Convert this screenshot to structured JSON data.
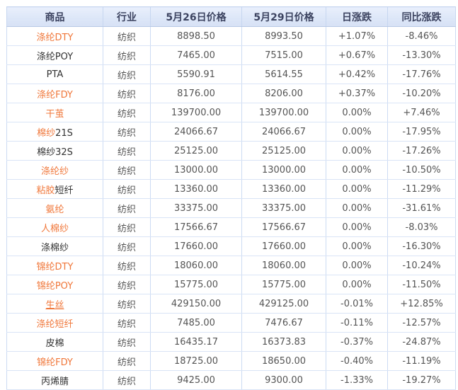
{
  "colors": {
    "up_red": "#e00000",
    "down_green": "#008000",
    "flat_gray": "#555555",
    "product_link_orange": "#f0773a",
    "header_bg": "#dde7f8",
    "border_blue": "#c6d6f0"
  },
  "table": {
    "columns": [
      {
        "key": "product",
        "label": "商品"
      },
      {
        "key": "industry",
        "label": "行业"
      },
      {
        "key": "price_0526",
        "label": "5月26日价格"
      },
      {
        "key": "price_0529",
        "label": "5月29日价格"
      },
      {
        "key": "daily",
        "label": "日涨跌"
      },
      {
        "key": "yoy",
        "label": "同比涨跌"
      }
    ],
    "rows": [
      {
        "product": [
          {
            "text": "涤纶DTY",
            "link": true
          }
        ],
        "industry": "纺织",
        "price_0526": "8898.50",
        "price_0529": "8993.50",
        "daily": {
          "text": "+1.07%",
          "trend": "up"
        },
        "yoy": {
          "text": "-8.46%",
          "trend": "down"
        }
      },
      {
        "product": [
          {
            "text": "涤纶POY",
            "link": false
          }
        ],
        "industry": "纺织",
        "price_0526": "7465.00",
        "price_0529": "7515.00",
        "daily": {
          "text": "+0.67%",
          "trend": "up"
        },
        "yoy": {
          "text": "-13.30%",
          "trend": "down"
        }
      },
      {
        "product": [
          {
            "text": "PTA",
            "link": false
          }
        ],
        "industry": "纺织",
        "price_0526": "5590.91",
        "price_0529": "5614.55",
        "daily": {
          "text": "+0.42%",
          "trend": "up"
        },
        "yoy": {
          "text": "-17.76%",
          "trend": "down"
        }
      },
      {
        "product": [
          {
            "text": "涤纶FDY",
            "link": true
          }
        ],
        "industry": "纺织",
        "price_0526": "8176.00",
        "price_0529": "8206.00",
        "daily": {
          "text": "+0.37%",
          "trend": "up"
        },
        "yoy": {
          "text": "-10.20%",
          "trend": "down"
        }
      },
      {
        "product": [
          {
            "text": "干茧",
            "link": true
          }
        ],
        "industry": "纺织",
        "price_0526": "139700.00",
        "price_0529": "139700.00",
        "daily": {
          "text": "0.00%",
          "trend": "flat"
        },
        "yoy": {
          "text": "+7.46%",
          "trend": "up"
        }
      },
      {
        "product": [
          {
            "text": "棉纱",
            "link": true
          },
          {
            "text": "21S",
            "link": false
          }
        ],
        "industry": "纺织",
        "price_0526": "24066.67",
        "price_0529": "24066.67",
        "daily": {
          "text": "0.00%",
          "trend": "flat"
        },
        "yoy": {
          "text": "-17.95%",
          "trend": "down"
        }
      },
      {
        "product": [
          {
            "text": "棉纱32S",
            "link": false
          }
        ],
        "industry": "纺织",
        "price_0526": "25125.00",
        "price_0529": "25125.00",
        "daily": {
          "text": "0.00%",
          "trend": "flat"
        },
        "yoy": {
          "text": "-17.26%",
          "trend": "down"
        }
      },
      {
        "product": [
          {
            "text": "涤纶纱",
            "link": true
          }
        ],
        "industry": "纺织",
        "price_0526": "13000.00",
        "price_0529": "13000.00",
        "daily": {
          "text": "0.00%",
          "trend": "flat"
        },
        "yoy": {
          "text": "-10.50%",
          "trend": "down"
        }
      },
      {
        "product": [
          {
            "text": "粘胶",
            "link": true
          },
          {
            "text": "短纤",
            "link": false
          }
        ],
        "industry": "纺织",
        "price_0526": "13360.00",
        "price_0529": "13360.00",
        "daily": {
          "text": "0.00%",
          "trend": "flat"
        },
        "yoy": {
          "text": "-11.29%",
          "trend": "down"
        }
      },
      {
        "product": [
          {
            "text": "氨纶",
            "link": true
          }
        ],
        "industry": "纺织",
        "price_0526": "33375.00",
        "price_0529": "33375.00",
        "daily": {
          "text": "0.00%",
          "trend": "flat"
        },
        "yoy": {
          "text": "-31.61%",
          "trend": "down"
        }
      },
      {
        "product": [
          {
            "text": "人棉纱",
            "link": true
          }
        ],
        "industry": "纺织",
        "price_0526": "17566.67",
        "price_0529": "17566.67",
        "daily": {
          "text": "0.00%",
          "trend": "flat"
        },
        "yoy": {
          "text": "-8.03%",
          "trend": "down"
        }
      },
      {
        "product": [
          {
            "text": "涤棉纱",
            "link": false
          }
        ],
        "industry": "纺织",
        "price_0526": "17660.00",
        "price_0529": "17660.00",
        "daily": {
          "text": "0.00%",
          "trend": "flat"
        },
        "yoy": {
          "text": "-16.30%",
          "trend": "down"
        }
      },
      {
        "product": [
          {
            "text": "锦纶DTY",
            "link": true
          }
        ],
        "industry": "纺织",
        "price_0526": "18060.00",
        "price_0529": "18060.00",
        "daily": {
          "text": "0.00%",
          "trend": "flat"
        },
        "yoy": {
          "text": "-10.24%",
          "trend": "down"
        }
      },
      {
        "product": [
          {
            "text": "锦纶POY",
            "link": true
          }
        ],
        "industry": "纺织",
        "price_0526": "15775.00",
        "price_0529": "15775.00",
        "daily": {
          "text": "0.00%",
          "trend": "flat"
        },
        "yoy": {
          "text": "-11.50%",
          "trend": "down"
        }
      },
      {
        "product": [
          {
            "text": "生丝",
            "link": true,
            "underline": true
          }
        ],
        "industry": "纺织",
        "price_0526": "429150.00",
        "price_0529": "429125.00",
        "daily": {
          "text": "-0.01%",
          "trend": "down"
        },
        "yoy": {
          "text": "+12.85%",
          "trend": "up"
        }
      },
      {
        "product": [
          {
            "text": "涤纶短纤",
            "link": true
          }
        ],
        "industry": "纺织",
        "price_0526": "7485.00",
        "price_0529": "7476.67",
        "daily": {
          "text": "-0.11%",
          "trend": "down"
        },
        "yoy": {
          "text": "-12.57%",
          "trend": "down"
        }
      },
      {
        "product": [
          {
            "text": "皮棉",
            "link": false
          }
        ],
        "industry": "纺织",
        "price_0526": "16435.17",
        "price_0529": "16373.83",
        "daily": {
          "text": "-0.37%",
          "trend": "down"
        },
        "yoy": {
          "text": "-24.87%",
          "trend": "down"
        }
      },
      {
        "product": [
          {
            "text": "锦纶FDY",
            "link": true
          }
        ],
        "industry": "纺织",
        "price_0526": "18725.00",
        "price_0529": "18650.00",
        "daily": {
          "text": "-0.40%",
          "trend": "down"
        },
        "yoy": {
          "text": "-11.19%",
          "trend": "down"
        }
      },
      {
        "product": [
          {
            "text": "丙烯腈",
            "link": false
          }
        ],
        "industry": "纺织",
        "price_0526": "9425.00",
        "price_0529": "9300.00",
        "daily": {
          "text": "-1.33%",
          "trend": "down"
        },
        "yoy": {
          "text": "-19.27%",
          "trend": "down"
        }
      }
    ]
  }
}
